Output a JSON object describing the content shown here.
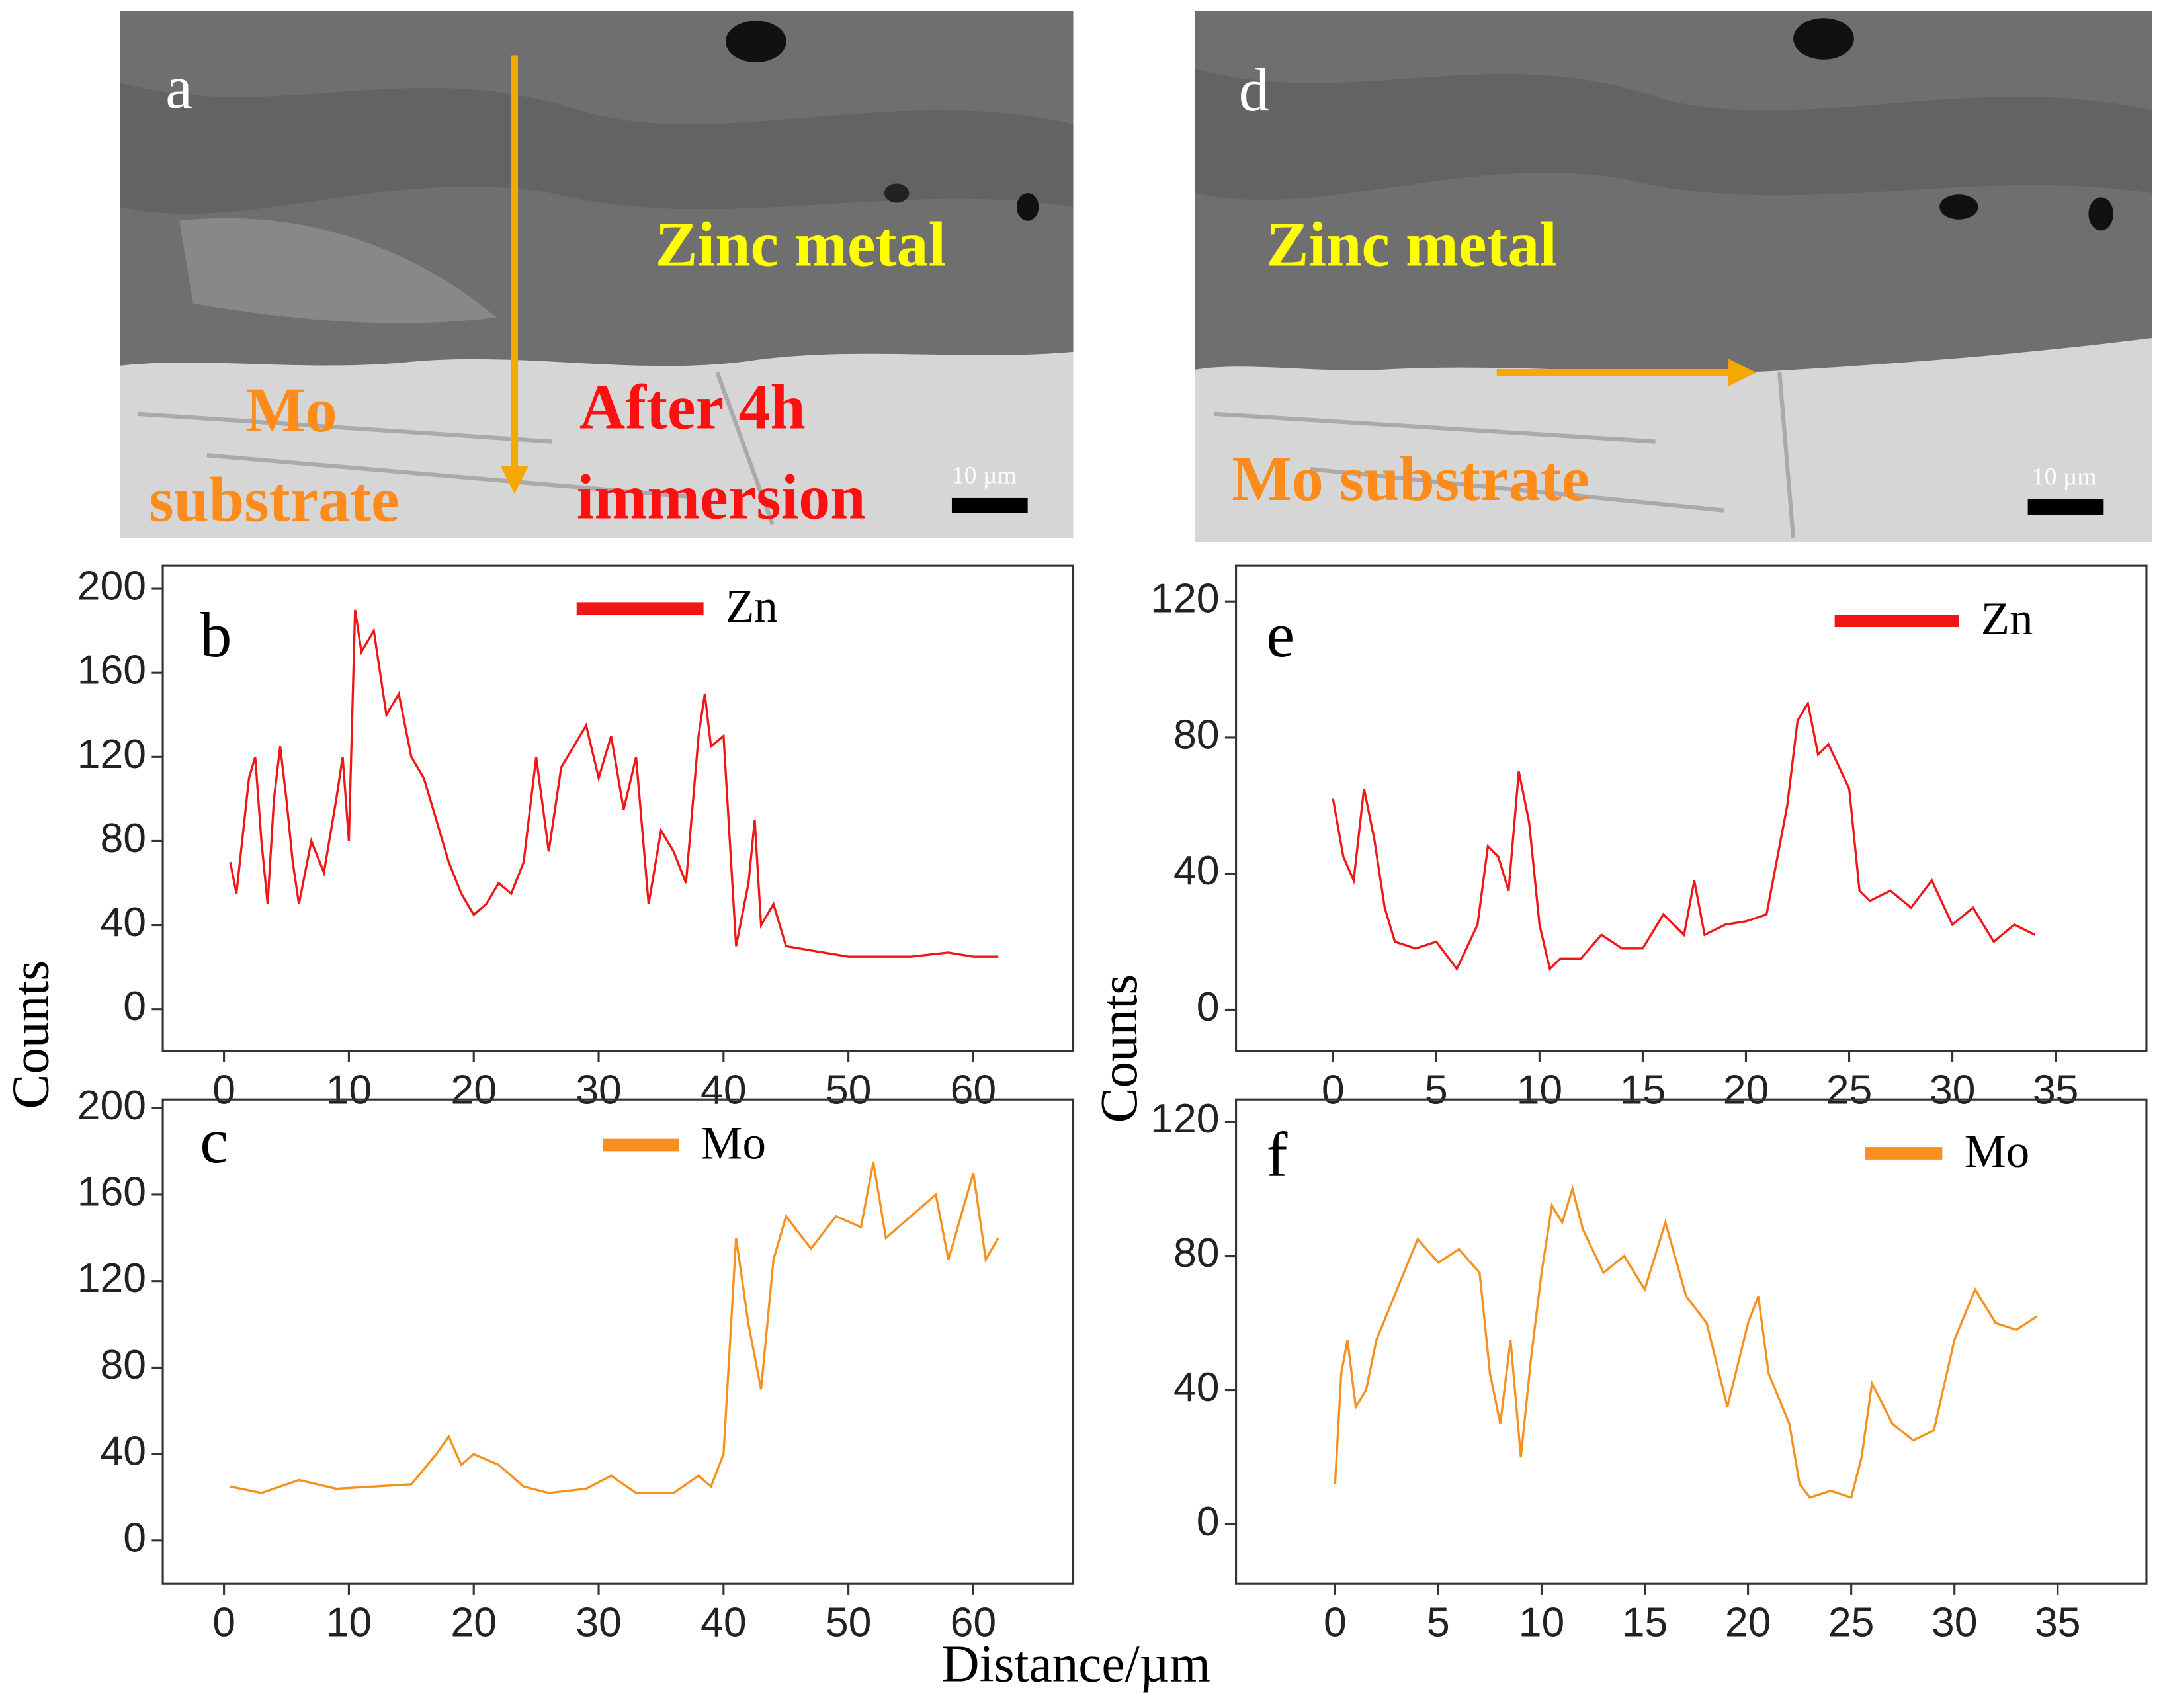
{
  "images": [
    {
      "panel": "a",
      "labels": [
        "Zinc metal",
        "Mo",
        "substrate",
        "After 4h",
        "immersion"
      ],
      "scale_bar": "10 µm"
    },
    {
      "panel": "d",
      "labels": [
        "Zinc metal",
        "Mo substrate"
      ],
      "scale_bar": "10 µm"
    }
  ],
  "ylabel": "Counts",
  "ylabel_right": "Counts",
  "xlabel": "Distance/µm",
  "chart_data": [
    {
      "type": "line",
      "panel": "b",
      "xlim": [
        -4.9,
        68
      ],
      "xticks": [
        0,
        10,
        20,
        30,
        40,
        50,
        60
      ],
      "ylim": [
        -20,
        211
      ],
      "yticks": [
        0,
        40,
        80,
        120,
        160,
        200
      ],
      "series": [
        {
          "name": "Zn",
          "color": "#f01616",
          "x": [
            0.5,
            1,
            2,
            2.5,
            3,
            3.5,
            4,
            4.5,
            5,
            5.5,
            6,
            7,
            8,
            9,
            9.5,
            10,
            10.5,
            11,
            12,
            13,
            14,
            15,
            16,
            17,
            18,
            19,
            20,
            21,
            22,
            23,
            24,
            25,
            26,
            27,
            28,
            29,
            30,
            31,
            32,
            33,
            34,
            35,
            36,
            37,
            38,
            38.5,
            39,
            40,
            41,
            42,
            42.5,
            43,
            44,
            45,
            47,
            50,
            55,
            58,
            60,
            62
          ],
          "values": [
            70,
            55,
            110,
            120,
            80,
            50,
            100,
            125,
            100,
            70,
            50,
            80,
            65,
            100,
            120,
            80,
            190,
            170,
            180,
            140,
            150,
            120,
            110,
            90,
            70,
            55,
            45,
            50,
            60,
            55,
            70,
            120,
            75,
            115,
            125,
            135,
            110,
            130,
            95,
            120,
            50,
            85,
            75,
            60,
            130,
            150,
            125,
            130,
            30,
            60,
            90,
            40,
            50,
            30,
            28,
            25,
            25,
            27,
            25,
            25
          ]
        }
      ]
    },
    {
      "type": "line",
      "panel": "c",
      "xlim": [
        -4.9,
        68
      ],
      "xticks": [
        0,
        10,
        20,
        30,
        40,
        50,
        60
      ],
      "ylim": [
        -20,
        204
      ],
      "yticks": [
        0,
        40,
        80,
        120,
        160,
        200
      ],
      "series": [
        {
          "name": "Mo",
          "color": "#f7901e",
          "x": [
            0.5,
            3,
            6,
            9,
            12,
            15,
            17,
            18,
            19,
            20,
            22,
            24,
            26,
            29,
            31,
            33,
            36,
            38,
            39,
            40,
            41,
            42,
            43,
            44,
            45,
            47,
            49,
            51,
            52,
            53,
            55,
            57,
            58,
            60,
            61,
            62
          ],
          "values": [
            25,
            22,
            28,
            24,
            25,
            26,
            40,
            48,
            35,
            40,
            35,
            25,
            22,
            24,
            30,
            22,
            22,
            30,
            25,
            40,
            140,
            100,
            70,
            130,
            150,
            135,
            150,
            145,
            175,
            140,
            150,
            160,
            130,
            170,
            130,
            140
          ]
        }
      ]
    },
    {
      "type": "line",
      "panel": "e",
      "xlim": [
        -4.7,
        39.4
      ],
      "xticks": [
        0,
        5,
        10,
        15,
        20,
        25,
        30,
        35
      ],
      "ylim": [
        -12.2,
        130.5
      ],
      "yticks": [
        0,
        40,
        80,
        120
      ],
      "series": [
        {
          "name": "Zn",
          "color": "#f01616",
          "x": [
            0,
            0.5,
            1,
            1.5,
            2,
            2.5,
            3,
            4,
            5,
            6,
            7,
            7.5,
            8,
            8.5,
            9,
            9.5,
            10,
            10.5,
            11,
            12,
            13,
            14,
            15,
            16,
            17,
            17.5,
            18,
            19,
            20,
            21,
            22,
            22.5,
            23,
            23.5,
            24,
            25,
            25.5,
            26,
            27,
            28,
            29,
            30,
            31,
            32,
            33,
            34
          ],
          "values": [
            62,
            45,
            38,
            65,
            50,
            30,
            20,
            18,
            20,
            12,
            25,
            48,
            45,
            35,
            70,
            55,
            25,
            12,
            15,
            15,
            22,
            18,
            18,
            28,
            22,
            38,
            22,
            25,
            26,
            28,
            60,
            85,
            90,
            75,
            78,
            65,
            35,
            32,
            35,
            30,
            38,
            25,
            30,
            20,
            25,
            22
          ]
        }
      ]
    },
    {
      "type": "line",
      "panel": "f",
      "xlim": [
        -4.8,
        39.3
      ],
      "xticks": [
        0,
        5,
        10,
        15,
        20,
        25,
        30,
        35
      ],
      "ylim": [
        -17.7,
        126.6
      ],
      "yticks": [
        0,
        40,
        80,
        120
      ],
      "series": [
        {
          "name": "Mo",
          "color": "#f7901e",
          "x": [
            0,
            0.3,
            0.6,
            1,
            1.5,
            2,
            3,
            4,
            5,
            6,
            7,
            7.5,
            8,
            8.5,
            9,
            9.5,
            10,
            10.5,
            11,
            11.5,
            12,
            13,
            14,
            15,
            16,
            17,
            18,
            19,
            20,
            20.5,
            21,
            22,
            22.5,
            23,
            24,
            25,
            25.5,
            26,
            27,
            28,
            29,
            30,
            31,
            32,
            33,
            34
          ],
          "values": [
            12,
            45,
            55,
            35,
            40,
            55,
            70,
            85,
            78,
            82,
            75,
            45,
            30,
            55,
            20,
            50,
            75,
            95,
            90,
            100,
            88,
            75,
            80,
            70,
            90,
            68,
            60,
            35,
            60,
            68,
            45,
            30,
            12,
            8,
            10,
            8,
            20,
            42,
            30,
            25,
            28,
            55,
            70,
            60,
            58,
            62
          ]
        }
      ]
    }
  ]
}
